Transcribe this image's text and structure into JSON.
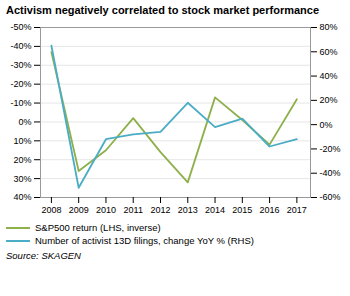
{
  "chart_data": {
    "type": "line",
    "title": "Activism negatively correlated to stock market performance",
    "x": [
      2008,
      2009,
      2010,
      2011,
      2012,
      2013,
      2014,
      2015,
      2016,
      2017
    ],
    "xlim": [
      2007.6,
      2017.5
    ],
    "xticks": [
      2008,
      2009,
      2010,
      2011,
      2012,
      2013,
      2014,
      2015,
      2016,
      2017
    ],
    "ylim": [
      40,
      -50
    ],
    "yticks": [
      {
        "value": -50,
        "label": "-50%"
      },
      {
        "value": -40,
        "label": "-40%"
      },
      {
        "value": -30,
        "label": "-30%"
      },
      {
        "value": -20,
        "label": "-20%"
      },
      {
        "value": -10,
        "label": "-10%"
      },
      {
        "value": 0,
        "label": "0%"
      },
      {
        "value": 10,
        "label": "10%"
      },
      {
        "value": 20,
        "label": "20%"
      },
      {
        "value": 30,
        "label": "30%"
      },
      {
        "value": 40,
        "label": "40%"
      }
    ],
    "y2lim": [
      -60,
      80
    ],
    "y2ticks": [
      {
        "value": 80,
        "label": "80%"
      },
      {
        "value": 60,
        "label": "60%"
      },
      {
        "value": 40,
        "label": "40%"
      },
      {
        "value": 20,
        "label": "20%"
      },
      {
        "value": 0,
        "label": "0%"
      },
      {
        "value": -20,
        "label": "-20%"
      },
      {
        "value": -40,
        "label": "-40%"
      },
      {
        "value": -60,
        "label": "-60%"
      }
    ],
    "grid": true,
    "legend": "bottom",
    "source": "Source: SKAGEN",
    "series": [
      {
        "name": "S&P500 return (LHS, inverse)",
        "color": "#8db04a",
        "values": [
          -37,
          26,
          15,
          -2,
          16,
          32,
          -13,
          -1,
          12,
          -12
        ]
      },
      {
        "name": "Number of activist 13D filings, change YoY % (RHS)",
        "color": "#4bacc6",
        "axis": "y2",
        "values": [
          65,
          -52,
          -12,
          -8,
          -6,
          18,
          -2,
          5,
          -18,
          -12
        ]
      }
    ]
  }
}
